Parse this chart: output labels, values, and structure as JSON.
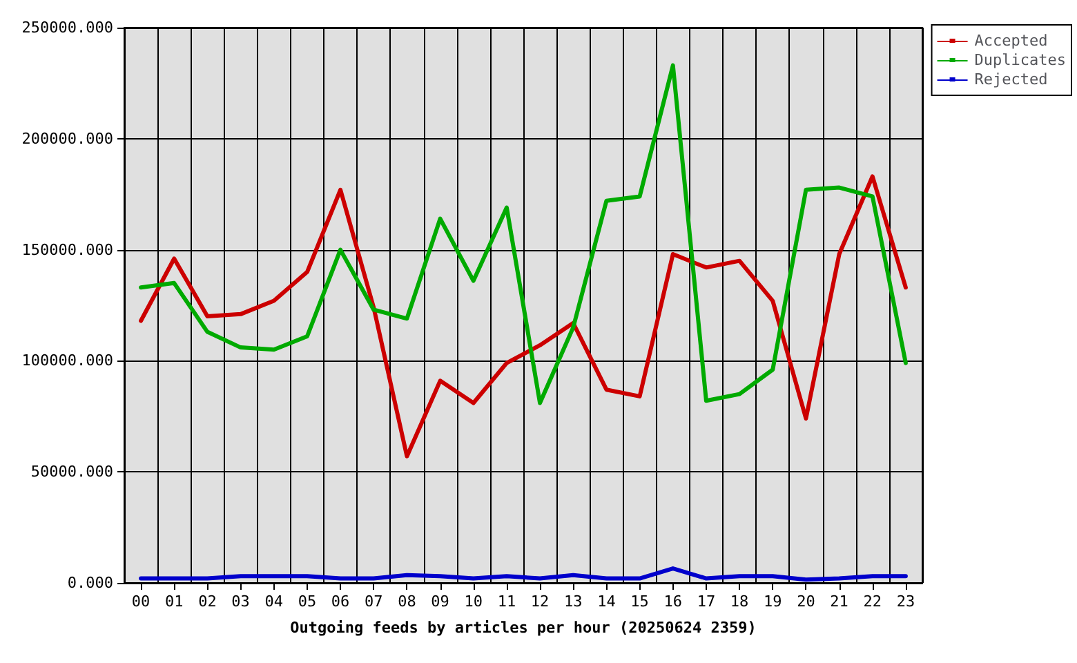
{
  "chart_data": {
    "type": "line",
    "xlabel": "Outgoing feeds by articles per hour (20250624 2359)",
    "categories": [
      "00",
      "01",
      "02",
      "03",
      "04",
      "05",
      "06",
      "07",
      "08",
      "09",
      "10",
      "11",
      "12",
      "13",
      "14",
      "15",
      "16",
      "17",
      "18",
      "19",
      "20",
      "21",
      "22",
      "23"
    ],
    "series": [
      {
        "name": "Accepted",
        "color": "#cc0000",
        "values": [
          118000,
          146000,
          120000,
          121000,
          127000,
          140000,
          177000,
          124000,
          57000,
          91000,
          81000,
          99000,
          107000,
          117000,
          87000,
          84000,
          148000,
          142000,
          145000,
          127000,
          74000,
          148000,
          183000,
          133000
        ]
      },
      {
        "name": "Duplicates",
        "color": "#00aa00",
        "values": [
          133000,
          135000,
          113000,
          106000,
          105000,
          111000,
          150000,
          123000,
          119000,
          164000,
          136000,
          169000,
          81000,
          115000,
          172000,
          174000,
          233000,
          82000,
          85000,
          96000,
          177000,
          178000,
          174000,
          99000
        ]
      },
      {
        "name": "Rejected",
        "color": "#0000cc",
        "values": [
          2000,
          2000,
          2000,
          3000,
          3000,
          3000,
          2000,
          2000,
          3500,
          3000,
          2000,
          3000,
          2000,
          3500,
          2000,
          2000,
          6500,
          2000,
          3000,
          3000,
          1500,
          2000,
          3000,
          3000
        ]
      }
    ],
    "ylim": [
      0,
      250000
    ],
    "yticks": [
      {
        "value": 0,
        "label": "0.000"
      },
      {
        "value": 50000,
        "label": "50000.000"
      },
      {
        "value": 100000,
        "label": "100000.000"
      },
      {
        "value": 150000,
        "label": "150000.000"
      },
      {
        "value": 200000,
        "label": "200000.000"
      },
      {
        "value": 250000,
        "label": "250000.000"
      }
    ],
    "grid": true,
    "legend": "top right",
    "marker": "none",
    "line_style": "solid"
  }
}
